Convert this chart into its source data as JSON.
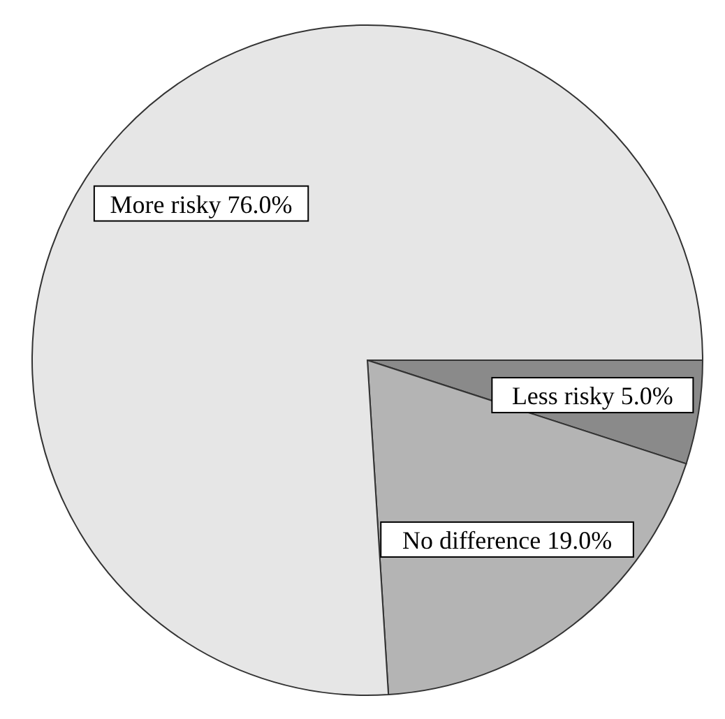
{
  "chart_data": {
    "type": "pie",
    "categories": [
      "Less risky",
      "No difference",
      "More risky"
    ],
    "values": [
      5,
      19,
      76
    ],
    "value_labels": [
      "5.0%",
      "19.0%",
      "76.0%"
    ],
    "colors": [
      "#8a8a8a",
      "#b4b4b4",
      "#e6e6e6"
    ]
  }
}
